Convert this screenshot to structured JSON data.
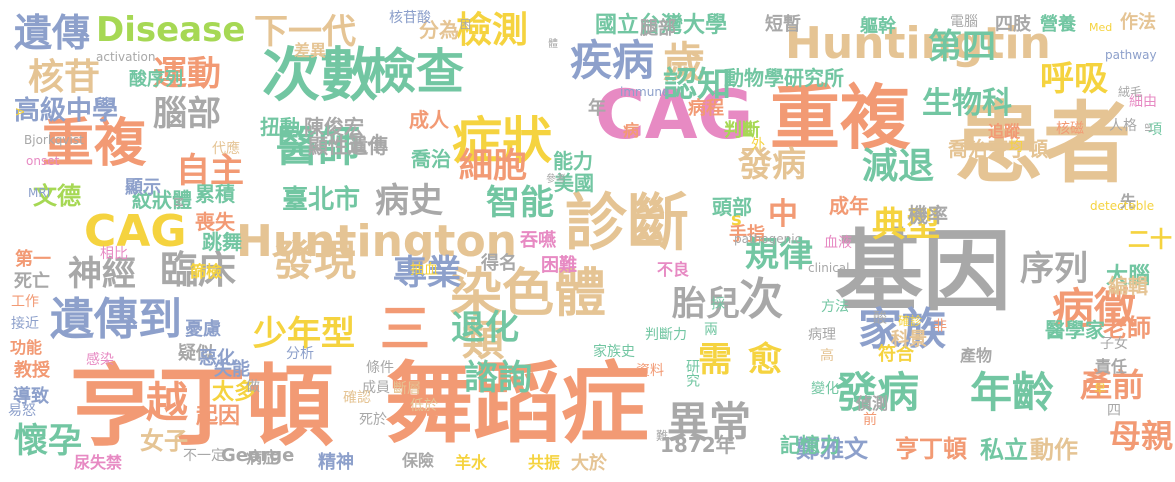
{
  "colors": {
    "background": "#ffffff",
    "gray": "#a8a8a8",
    "dark": "#6e6e6e",
    "orange": "#f29a74",
    "red": "#e8806c",
    "pink": "#e78ac3",
    "tan": "#e5c494",
    "green": "#72c6a2",
    "blue": "#8da0cb",
    "yellow": "#f5d33f",
    "lime": "#a6d854"
  },
  "words": [
    {
      "text": "患者",
      "color": "tan"
    },
    {
      "text": "基因",
      "color": "gray"
    },
    {
      "text": "舞蹈症",
      "color": "orange"
    },
    {
      "text": "亨丁頓",
      "color": "orange"
    },
    {
      "text": "CAG",
      "color": "pink"
    },
    {
      "text": "重複",
      "color": "orange"
    },
    {
      "text": "診斷",
      "color": "tan"
    },
    {
      "text": "次數",
      "color": "green"
    },
    {
      "text": "Huntingtin",
      "color": "tan"
    },
    {
      "text": "Huntington",
      "color": "tan"
    },
    {
      "text": "染色體",
      "color": "tan"
    },
    {
      "text": "症狀",
      "color": "yellow"
    },
    {
      "text": "檢查",
      "color": "green"
    },
    {
      "text": "重複",
      "color": "orange"
    },
    {
      "text": "CAG",
      "color": "yellow"
    },
    {
      "text": "發病",
      "color": "green"
    },
    {
      "text": "年齡",
      "color": "green"
    },
    {
      "text": "遺傳到",
      "color": "blue"
    },
    {
      "text": "家族",
      "color": "blue"
    },
    {
      "text": "病徵",
      "color": "orange"
    },
    {
      "text": "發現",
      "color": "tan"
    },
    {
      "text": "異常",
      "color": "gray"
    },
    {
      "text": "疾病",
      "color": "blue"
    },
    {
      "text": "歲",
      "color": "tan"
    },
    {
      "text": "次",
      "color": "gray"
    },
    {
      "text": "類",
      "color": "tan"
    },
    {
      "text": "醫師",
      "color": "green"
    },
    {
      "text": "臨床",
      "color": "gray"
    },
    {
      "text": "越",
      "color": "orange"
    },
    {
      "text": "三",
      "color": "orange"
    },
    {
      "text": "遺傳",
      "color": "blue"
    },
    {
      "text": "Disease",
      "color": "lime"
    },
    {
      "text": "下一代",
      "color": "tan"
    },
    {
      "text": "檢測",
      "color": "yellow"
    },
    {
      "text": "第四",
      "color": "green"
    },
    {
      "text": "核苷",
      "color": "tan"
    },
    {
      "text": "運動",
      "color": "orange"
    },
    {
      "text": "認知",
      "color": "green"
    },
    {
      "text": "呼吸",
      "color": "yellow"
    },
    {
      "text": "腦部",
      "color": "gray"
    },
    {
      "text": "高級中學",
      "color": "blue"
    },
    {
      "text": "自主",
      "color": "orange"
    },
    {
      "text": "細胞",
      "color": "orange"
    },
    {
      "text": "發病",
      "color": "tan"
    },
    {
      "text": "減退",
      "color": "green"
    },
    {
      "text": "病史",
      "color": "gray"
    },
    {
      "text": "智能",
      "color": "green"
    },
    {
      "text": "生物科",
      "color": "green"
    },
    {
      "text": "典型",
      "color": "yellow"
    },
    {
      "text": "神經",
      "color": "gray"
    },
    {
      "text": "專業",
      "color": "blue"
    },
    {
      "text": "規律",
      "color": "green"
    },
    {
      "text": "序列",
      "color": "gray"
    },
    {
      "text": "少年型",
      "color": "yellow"
    },
    {
      "text": "退化",
      "color": "green"
    },
    {
      "text": "胎兒",
      "color": "gray"
    },
    {
      "text": "諮詢",
      "color": "green"
    },
    {
      "text": "需",
      "color": "yellow"
    },
    {
      "text": "愈",
      "color": "yellow"
    },
    {
      "text": "懷孕",
      "color": "green"
    },
    {
      "text": "母親",
      "color": "orange"
    },
    {
      "text": "產前",
      "color": "orange"
    },
    {
      "text": "中",
      "color": "orange"
    },
    {
      "text": "s",
      "color": "yellow"
    },
    {
      "text": "臺北市",
      "color": "green"
    },
    {
      "text": "國立台灣大學",
      "color": "green"
    },
    {
      "text": "動物學研究所",
      "color": "green"
    },
    {
      "text": "文德",
      "color": "lime"
    },
    {
      "text": "女子",
      "color": "tan"
    },
    {
      "text": "太多",
      "color": "yellow"
    },
    {
      "text": "起因",
      "color": "orange"
    },
    {
      "text": "亨丁頓",
      "color": "orange"
    },
    {
      "text": "鄭雅文",
      "color": "blue"
    },
    {
      "text": "私立",
      "color": "green"
    },
    {
      "text": "動作",
      "color": "tan"
    },
    {
      "text": "老師",
      "color": "orange"
    },
    {
      "text": "醫學家",
      "color": "green"
    },
    {
      "text": "二十",
      "color": "yellow"
    },
    {
      "text": "大腦",
      "color": "green"
    },
    {
      "text": "編輯",
      "color": "tan"
    },
    {
      "text": "記憶力",
      "color": "green"
    },
    {
      "text": "1872年",
      "color": "gray"
    },
    {
      "text": "George",
      "color": "gray"
    },
    {
      "text": "陳俊宏",
      "color": "gray"
    },
    {
      "text": "顯性遺傳",
      "color": "gray"
    },
    {
      "text": "喬治亨丁頓",
      "color": "tan"
    },
    {
      "text": "紋狀體",
      "color": "green"
    },
    {
      "text": "累積",
      "color": "green"
    },
    {
      "text": "跳舞",
      "color": "green"
    },
    {
      "text": "喪失",
      "color": "orange"
    },
    {
      "text": "扭動",
      "color": "green"
    },
    {
      "text": "成人",
      "color": "orange"
    },
    {
      "text": "五十",
      "color": "gray"
    },
    {
      "text": "喬治",
      "color": "green"
    },
    {
      "text": "能力",
      "color": "green"
    },
    {
      "text": "美國",
      "color": "green"
    },
    {
      "text": "頭部",
      "color": "green"
    },
    {
      "text": "手指",
      "color": "orange"
    },
    {
      "text": "成年",
      "color": "orange"
    },
    {
      "text": "機率",
      "color": "gray"
    },
    {
      "text": "分為",
      "color": "tan"
    },
    {
      "text": "腿部",
      "color": "gray"
    },
    {
      "text": "短暫",
      "color": "gray"
    },
    {
      "text": "軀幹",
      "color": "green"
    },
    {
      "text": "四肢",
      "color": "gray"
    },
    {
      "text": "營養",
      "color": "green"
    },
    {
      "text": "作法",
      "color": "tan"
    },
    {
      "text": "電腦",
      "color": "gray"
    },
    {
      "text": "核苷酸",
      "color": "blue"
    },
    {
      "text": "差異",
      "color": "tan"
    },
    {
      "text": "酸序列",
      "color": "green"
    },
    {
      "text": "病程",
      "color": "orange"
    },
    {
      "text": "判斷",
      "color": "lime"
    },
    {
      "text": "代應",
      "color": "tan"
    },
    {
      "text": "病",
      "color": "orange"
    },
    {
      "text": "年",
      "color": "gray"
    },
    {
      "text": "追蹤",
      "color": "orange"
    },
    {
      "text": "均",
      "color": "yellow"
    },
    {
      "text": "核磁",
      "color": "orange"
    },
    {
      "text": "細由",
      "color": "pink"
    },
    {
      "text": "人格",
      "color": "gray"
    },
    {
      "text": "項",
      "color": "green"
    },
    {
      "text": "外",
      "color": "yellow"
    },
    {
      "text": "參考",
      "color": "gray"
    },
    {
      "text": "吞嚥",
      "color": "pink"
    },
    {
      "text": "困難",
      "color": "pink"
    },
    {
      "text": "得名",
      "color": "gray"
    },
    {
      "text": "不良",
      "color": "pink"
    },
    {
      "text": "抽血",
      "color": "yellow"
    },
    {
      "text": "篩檢",
      "color": "yellow"
    },
    {
      "text": "顯示",
      "color": "blue"
    },
    {
      "text": "相比",
      "color": "pink"
    },
    {
      "text": "第一",
      "color": "orange"
    },
    {
      "text": "死亡",
      "color": "gray"
    },
    {
      "text": "工作",
      "color": "orange"
    },
    {
      "text": "接近",
      "color": "blue"
    },
    {
      "text": "功能",
      "color": "orange"
    },
    {
      "text": "教授",
      "color": "orange"
    },
    {
      "text": "導致",
      "color": "blue"
    },
    {
      "text": "易怒",
      "color": "blue"
    },
    {
      "text": "尿失禁",
      "color": "pink"
    },
    {
      "text": "感染",
      "color": "pink"
    },
    {
      "text": "憂慮",
      "color": "blue"
    },
    {
      "text": "疑似",
      "color": "gray"
    },
    {
      "text": "惡化",
      "color": "blue"
    },
    {
      "text": "失能",
      "color": "blue"
    },
    {
      "text": "分析",
      "color": "blue"
    },
    {
      "text": "做",
      "color": "gray"
    },
    {
      "text": "成員",
      "color": "gray"
    },
    {
      "text": "斷層",
      "color": "tan"
    },
    {
      "text": "確認",
      "color": "tan"
    },
    {
      "text": "低於",
      "color": "tan"
    },
    {
      "text": "死於",
      "color": "gray"
    },
    {
      "text": "條件",
      "color": "gray"
    },
    {
      "text": "不一定",
      "color": "gray"
    },
    {
      "text": "病症",
      "color": "gray"
    },
    {
      "text": "精神",
      "color": "blue"
    },
    {
      "text": "保險",
      "color": "gray"
    },
    {
      "text": "羊水",
      "color": "yellow"
    },
    {
      "text": "共振",
      "color": "yellow"
    },
    {
      "text": "大於",
      "color": "tan"
    },
    {
      "text": "資料",
      "color": "orange"
    },
    {
      "text": "研究",
      "color": "green"
    },
    {
      "text": "家族史",
      "color": "green"
    },
    {
      "text": "判斷力",
      "color": "green"
    },
    {
      "text": "兩",
      "color": "green"
    },
    {
      "text": "方法",
      "color": "green"
    },
    {
      "text": "酸",
      "color": "gray"
    },
    {
      "text": "非",
      "color": "orange"
    },
    {
      "text": "病理",
      "color": "gray"
    },
    {
      "text": "高",
      "color": "tan"
    },
    {
      "text": "符合",
      "color": "yellow"
    },
    {
      "text": "確診",
      "color": "yellow"
    },
    {
      "text": "科景",
      "color": "tan"
    },
    {
      "text": "產物",
      "color": "gray"
    },
    {
      "text": "責任",
      "color": "gray"
    },
    {
      "text": "變化",
      "color": "green"
    },
    {
      "text": "偵測",
      "color": "gray"
    },
    {
      "text": "前",
      "color": "orange"
    },
    {
      "text": "早",
      "color": "yellow"
    },
    {
      "text": "子女",
      "color": "gray"
    },
    {
      "text": "四",
      "color": "gray"
    },
    {
      "text": "先",
      "color": "gray"
    },
    {
      "text": "血液",
      "color": "pink"
    },
    {
      "text": "al",
      "color": "gray"
    },
    {
      "text": "採",
      "color": "green"
    },
    {
      "text": "難",
      "color": "gray"
    },
    {
      "text": "體",
      "color": "gray"
    },
    {
      "text": "困",
      "color": "gray"
    },
    {
      "text": "M",
      "color": "gray"
    },
    {
      "text": "A",
      "color": "yellow"
    },
    {
      "text": "Bjorkqvist",
      "color": "gray"
    },
    {
      "text": "onset",
      "color": "pink"
    },
    {
      "text": "絨毛",
      "color": "gray"
    },
    {
      "text": "activation",
      "color": "gray"
    },
    {
      "text": "pathogenic",
      "color": "gray"
    },
    {
      "text": "clinical",
      "color": "gray"
    },
    {
      "text": "detectable",
      "color": "yellow"
    },
    {
      "text": "Med",
      "color": "yellow"
    },
    {
      "text": "pathway",
      "color": "blue"
    },
    {
      "text": "immune",
      "color": "blue"
    },
    {
      "text": "MRI",
      "color": "blue"
    }
  ]
}
